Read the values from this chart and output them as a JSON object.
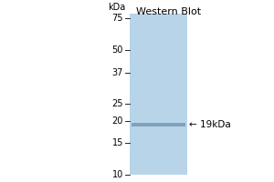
{
  "title": "Western Blot",
  "kda_label": "kDa",
  "marker_labels": [
    "75",
    "50",
    "37",
    "25",
    "20",
    "15",
    "10"
  ],
  "marker_kda": [
    75,
    50,
    37,
    25,
    20,
    15,
    10
  ],
  "band_kda": 19,
  "band_label": "← 19kDa",
  "blot_color": "#b8d4e8",
  "band_color": "#7a9db8",
  "background_color": "#ffffff",
  "title_fontsize": 8,
  "label_fontsize": 7,
  "band_label_fontsize": 7.5,
  "kda_label_fontsize": 7
}
